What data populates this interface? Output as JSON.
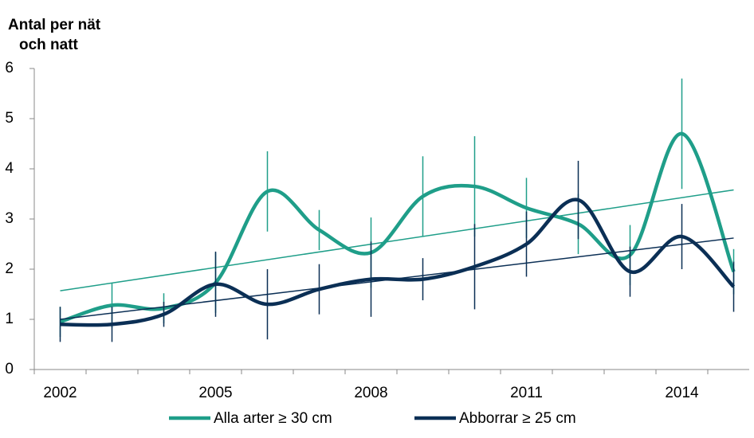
{
  "chart_data": {
    "type": "line",
    "y_label": [
      "Antal per nät",
      "och natt"
    ],
    "categories": [
      "2002",
      null,
      null,
      "2005",
      null,
      null,
      "2008",
      null,
      null,
      "2011",
      null,
      null,
      "2014",
      null
    ],
    "series": [
      {
        "name": "Alla arter ≥ 30 cm",
        "color": "#1f9e89",
        "values": [
          0.95,
          1.28,
          1.22,
          1.73,
          3.55,
          2.78,
          2.33,
          3.45,
          3.65,
          3.22,
          2.9,
          2.28,
          4.7,
          1.95
        ],
        "errors": [
          0.3,
          0.45,
          0.3,
          0.6,
          0.8,
          0.4,
          0.7,
          0.8,
          1.0,
          0.6,
          0.6,
          0.6,
          1.1,
          0.45
        ],
        "trend": [
          1.57,
          3.58
        ]
      },
      {
        "name": "Abborrar ≥ 25 cm",
        "color": "#0b2f55",
        "values": [
          0.9,
          0.9,
          1.1,
          1.7,
          1.3,
          1.6,
          1.8,
          1.8,
          2.05,
          2.5,
          3.38,
          1.95,
          2.65,
          1.65
        ],
        "errors": [
          0.35,
          0.35,
          0.25,
          0.65,
          0.7,
          0.5,
          0.75,
          0.42,
          0.85,
          0.65,
          0.78,
          0.5,
          0.65,
          0.5
        ],
        "trend": [
          1.0,
          2.62
        ]
      }
    ],
    "ylim": [
      0,
      6
    ],
    "yticks": [
      0,
      1,
      2,
      3,
      4,
      5,
      6
    ],
    "grid": false,
    "legend": "bottom"
  }
}
